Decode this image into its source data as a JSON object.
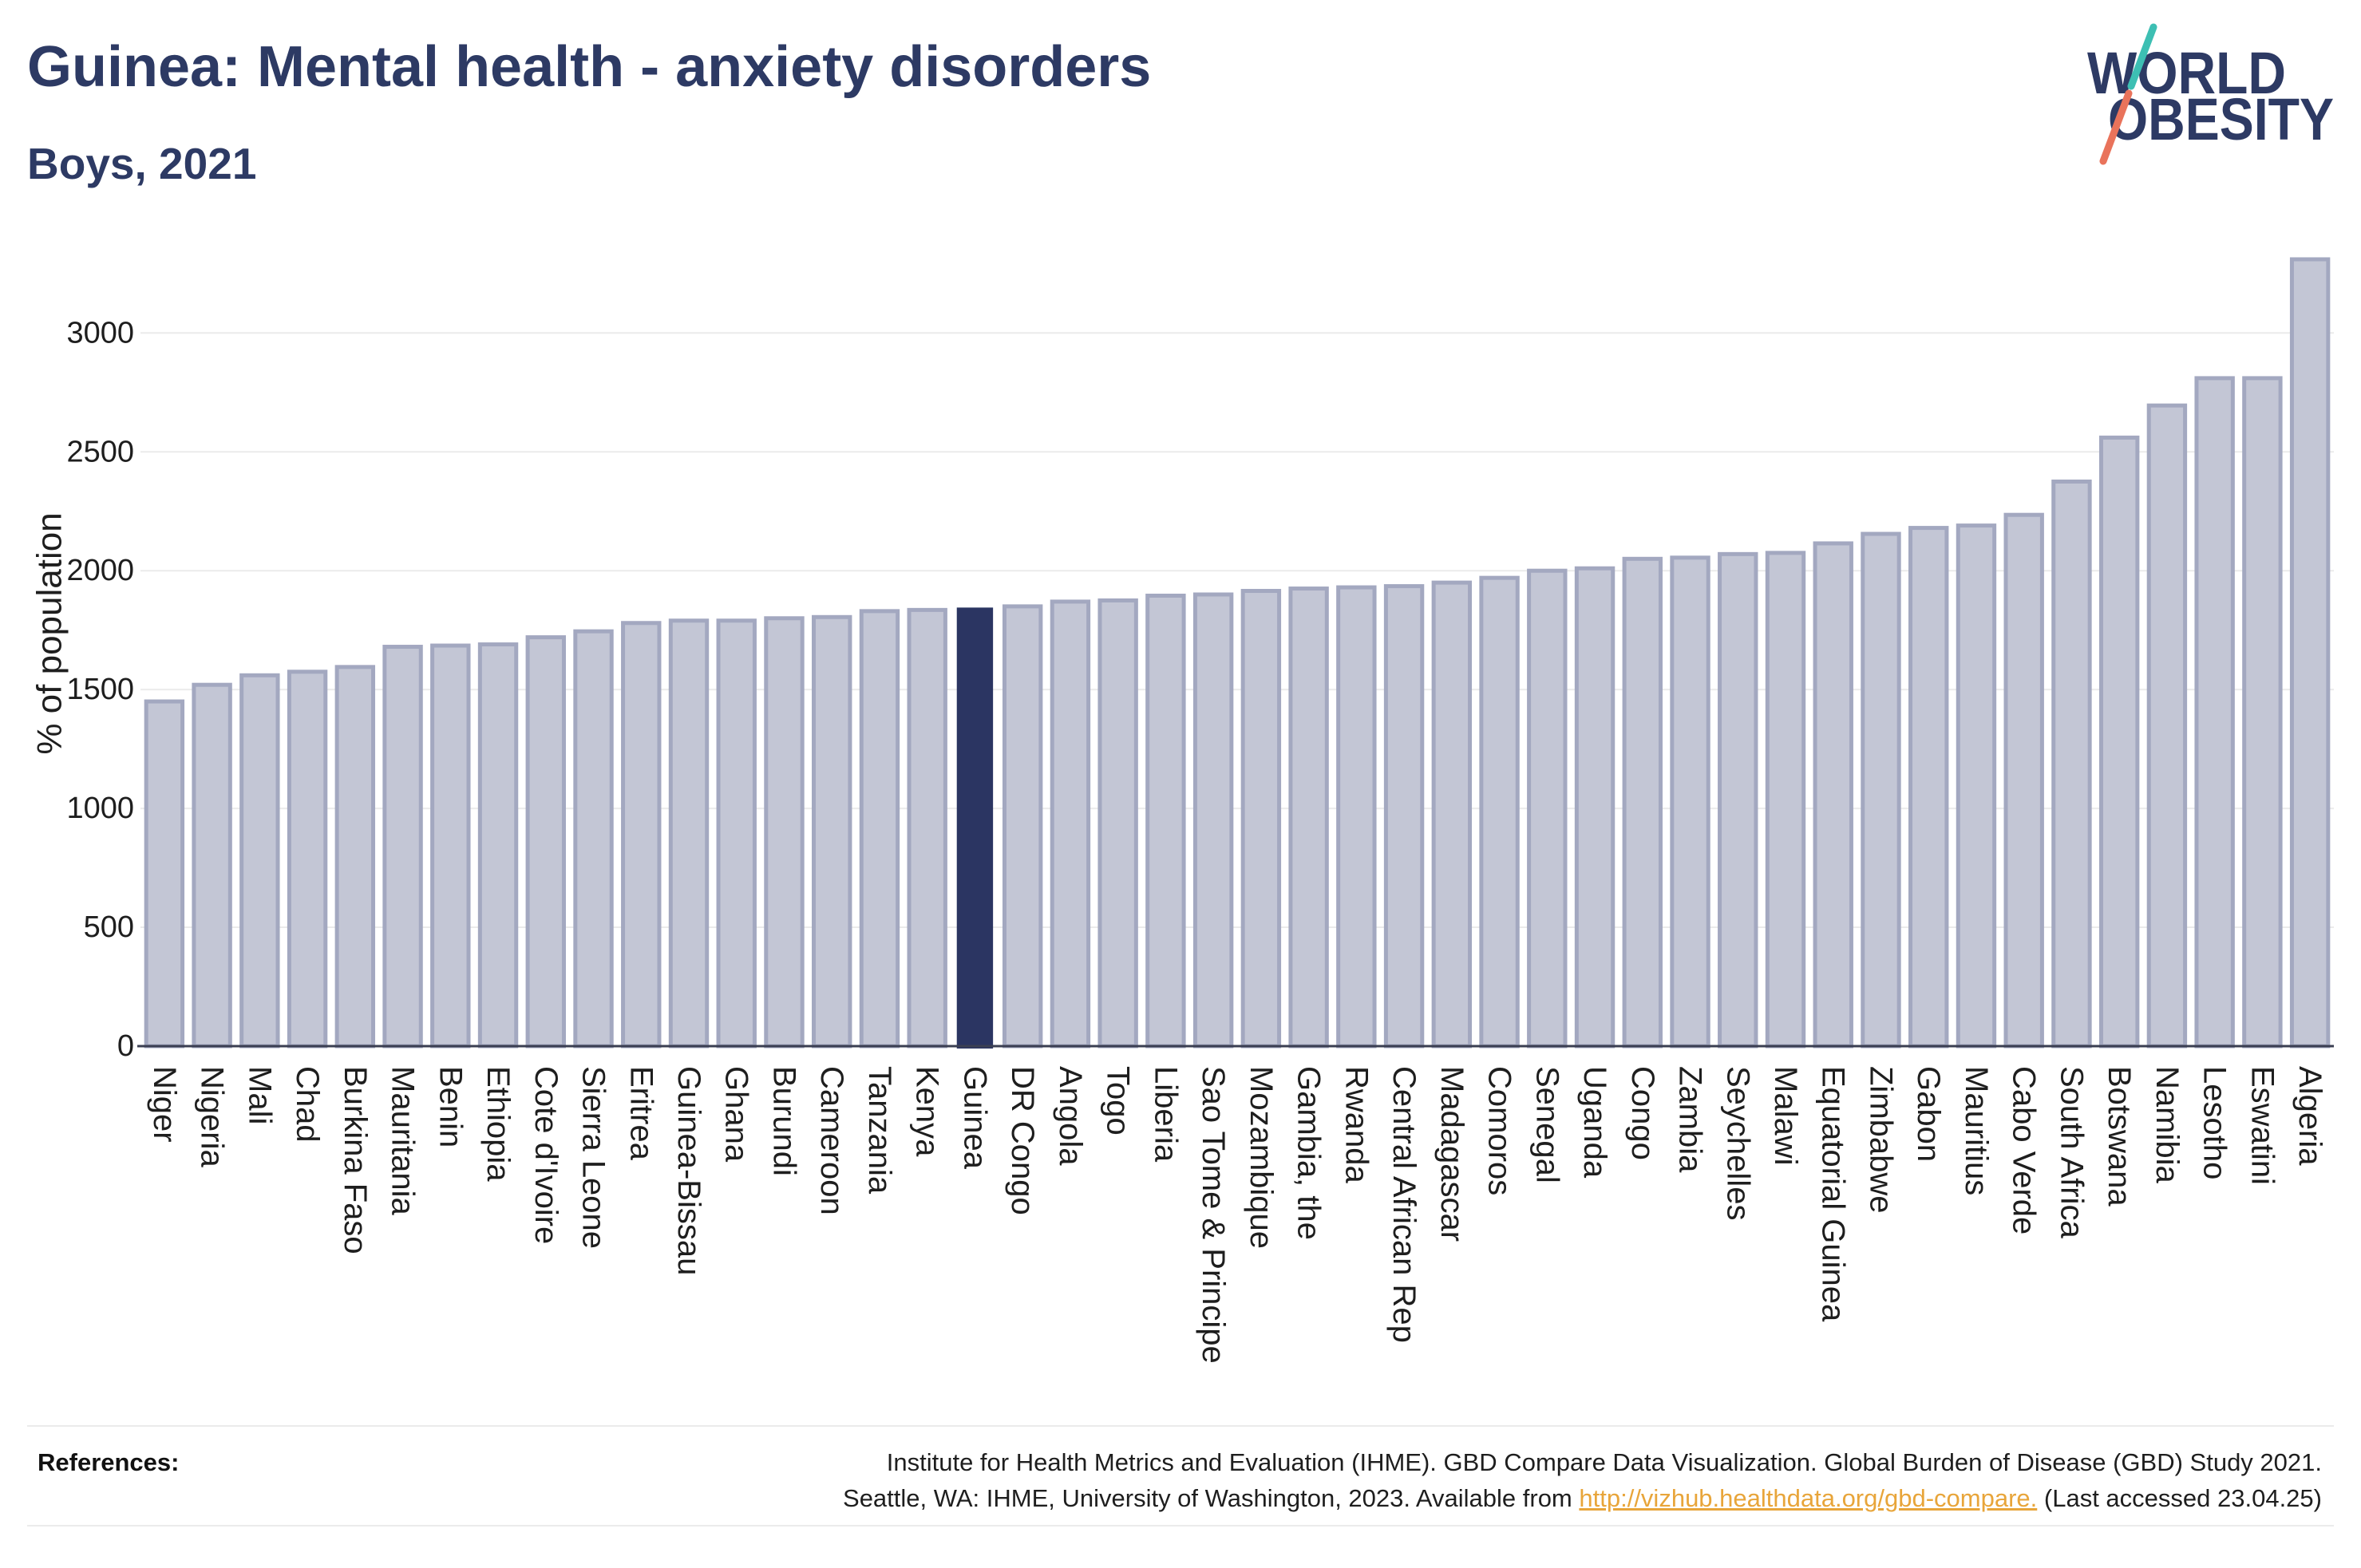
{
  "chart_data": {
    "type": "bar",
    "title": "Guinea: Mental health - anxiety disorders",
    "subtitle": "Boys, 2021",
    "ylabel": "% of population",
    "ylim": [
      0,
      3330
    ],
    "yticks": [
      0,
      500,
      1000,
      1500,
      2000,
      2500,
      3000
    ],
    "grid": true,
    "highlight_index": 17,
    "categories": [
      "Niger",
      "Nigeria",
      "Mali",
      "Chad",
      "Burkina Faso",
      "Mauritania",
      "Benin",
      "Ethiopia",
      "Cote d'Ivoire",
      "Sierra Leone",
      "Eritrea",
      "Guinea-Bissau",
      "Ghana",
      "Burundi",
      "Cameroon",
      "Tanzania",
      "Kenya",
      "Guinea",
      "DR Congo",
      "Angola",
      "Togo",
      "Liberia",
      "Sao Tome & Principe",
      "Mozambique",
      "Gambia, the",
      "Rwanda",
      "Central African Rep",
      "Madagascar",
      "Comoros",
      "Senegal",
      "Uganda",
      "Congo",
      "Zambia",
      "Seychelles",
      "Malawi",
      "Equatorial Guinea",
      "Zimbabwe",
      "Gabon",
      "Mauritius",
      "Cabo Verde",
      "South Africa",
      "Botswana",
      "Namibia",
      "Lesotho",
      "Eswatini",
      "Algeria"
    ],
    "values": [
      1450,
      1520,
      1560,
      1575,
      1595,
      1680,
      1685,
      1690,
      1720,
      1745,
      1780,
      1790,
      1790,
      1800,
      1805,
      1830,
      1835,
      1845,
      1850,
      1870,
      1875,
      1895,
      1900,
      1915,
      1925,
      1930,
      1935,
      1950,
      1970,
      2000,
      2010,
      2050,
      2055,
      2070,
      2075,
      2115,
      2155,
      2180,
      2190,
      2235,
      2375,
      2560,
      2695,
      2810,
      2810,
      3310
    ],
    "colors": {
      "bar_fill": "#c3c6d5",
      "bar_stroke": "#a3a8c0",
      "highlight_fill": "#2b3562",
      "axis": "#3b3f52",
      "grid": "#ebebeb"
    }
  },
  "logo": {
    "line1": "WORLD",
    "line2": "OBESITY",
    "text_color": "#2d3a64",
    "slash_top_color": "#3dbfb3",
    "slash_bottom_color": "#e9735b"
  },
  "theme": {
    "title_color": "#2d3a64",
    "link_color": "#e8a53a"
  },
  "footer": {
    "references_label": "References:",
    "line1": "Institute for Health Metrics and Evaluation (IHME). GBD Compare Data Visualization. Global Burden of Disease (GBD) Study 2021.",
    "line2_prefix": "Seattle, WA: IHME, University of Washington, 2023. Available from",
    "link_text": "http://vizhub.healthdata.org/gbd-compare.",
    "line2_suffix": "(Last accessed 23.04.25)"
  }
}
